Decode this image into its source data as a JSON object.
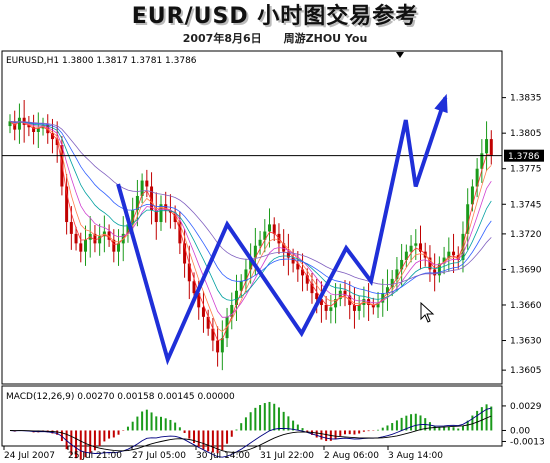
{
  "header": {
    "title": "EUR/USD 小时图交易参考",
    "subtitle": "2007年8月6日　　周游ZHOU You"
  },
  "chart_data": [
    {
      "type": "candlestick",
      "symbol_info": "EURUSD,H1  1.3800 1.3817 1.3781 1.3786",
      "ylim": [
        1.3595,
        1.386
      ],
      "y_ticks": [
        "1.3835",
        "1.3805",
        "1.3775",
        "1.3745",
        "1.3720",
        "1.3690",
        "1.3660",
        "1.3630",
        "1.3605"
      ],
      "current_price_label": "1.3786",
      "current_price": 1.3786,
      "x_tick_labels": [
        "24 Jul 2007",
        "25 Jul 21:00",
        "27 Jul 05:00",
        "30 Jul 14:00",
        "31 Jul 22:00",
        "2 Aug 06:00",
        "3 Aug 14:00"
      ],
      "candle_close": [
        1.3815,
        1.3808,
        1.3818,
        1.3812,
        1.381,
        1.3806,
        1.3809,
        1.3812,
        1.3805,
        1.38,
        1.3795,
        1.376,
        1.373,
        1.372,
        1.3712,
        1.3705,
        1.3715,
        1.372,
        1.3712,
        1.3718,
        1.3722,
        1.3715,
        1.3705,
        1.3712,
        1.372,
        1.3728,
        1.374,
        1.3752,
        1.3765,
        1.376,
        1.374,
        1.373,
        1.3745,
        1.374,
        1.3738,
        1.373,
        1.3712,
        1.3695,
        1.368,
        1.367,
        1.3658,
        1.365,
        1.364,
        1.363,
        1.362,
        1.3632,
        1.365,
        1.366,
        1.3672,
        1.368,
        1.369,
        1.37,
        1.371,
        1.3715,
        1.3722,
        1.3728,
        1.372,
        1.3712,
        1.3705,
        1.37,
        1.3695,
        1.369,
        1.3685,
        1.3678,
        1.367,
        1.3665,
        1.366,
        1.3655,
        1.3658,
        1.3665,
        1.3672,
        1.3668,
        1.366,
        1.3655,
        1.366,
        1.3665,
        1.366,
        1.3658,
        1.3662,
        1.367,
        1.3675,
        1.3682,
        1.369,
        1.3698,
        1.3705,
        1.371,
        1.3712,
        1.3705,
        1.37,
        1.369,
        1.3685,
        1.3695,
        1.37,
        1.3705,
        1.3702,
        1.3698,
        1.372,
        1.3745,
        1.376,
        1.3775,
        1.3788,
        1.38,
        1.3786
      ],
      "arrow_path": [
        [
          0.23,
          1.3762
        ],
        [
          0.33,
          1.3614
        ],
        [
          0.45,
          1.3728
        ],
        [
          0.6,
          1.3636
        ],
        [
          0.69,
          1.3708
        ],
        [
          0.74,
          1.368
        ],
        [
          0.81,
          1.3816
        ],
        [
          0.83,
          1.376
        ],
        [
          0.89,
          1.3835
        ]
      ]
    },
    {
      "type": "macd",
      "label": "MACD(12,26,9) 0.00270 0.00158 0.00145 0.00000",
      "y_ticks": [
        "0.0029",
        "0.00",
        "-0.0013"
      ],
      "ylim": [
        -0.0016,
        0.0036
      ]
    }
  ]
}
